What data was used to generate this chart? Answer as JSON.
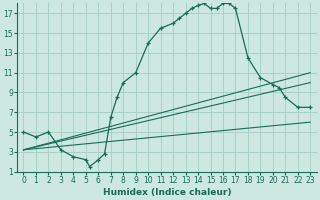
{
  "xlabel": "Humidex (Indice chaleur)",
  "xlim": [
    -0.5,
    23.5
  ],
  "ylim": [
    1,
    18
  ],
  "yticks": [
    1,
    3,
    5,
    7,
    9,
    11,
    13,
    15,
    17
  ],
  "xticks": [
    0,
    1,
    2,
    3,
    4,
    5,
    6,
    7,
    8,
    9,
    10,
    11,
    12,
    13,
    14,
    15,
    16,
    17,
    18,
    19,
    20,
    21,
    22,
    23
  ],
  "bg_color": "#cce8e0",
  "grid_color": "#aad0c8",
  "line_color": "#1a6b5a",
  "curve1_x": [
    0,
    1,
    2,
    3,
    4,
    5,
    5.3,
    6,
    6.5,
    7,
    7.5,
    8,
    9,
    10,
    11,
    12,
    12.5,
    13,
    13.5,
    14,
    14.5,
    15,
    15.5,
    16,
    16.5,
    17,
    18,
    19,
    20,
    20.5,
    21,
    22,
    23
  ],
  "curve1_y": [
    5,
    4.5,
    5,
    3.2,
    2.5,
    2.2,
    1.5,
    2.2,
    2.8,
    6.5,
    8.5,
    10,
    11,
    14,
    15.5,
    16,
    16.5,
    17,
    17.5,
    17.8,
    18,
    17.5,
    17.5,
    18,
    18,
    17.5,
    12.5,
    10.5,
    9.8,
    9.5,
    8.5,
    7.5,
    7.5
  ],
  "line1_x": [
    0,
    23
  ],
  "line1_y": [
    3.2,
    11
  ],
  "line2_x": [
    0,
    23
  ],
  "line2_y": [
    3.2,
    10
  ],
  "line3_x": [
    0,
    23
  ],
  "line3_y": [
    3.2,
    6
  ]
}
